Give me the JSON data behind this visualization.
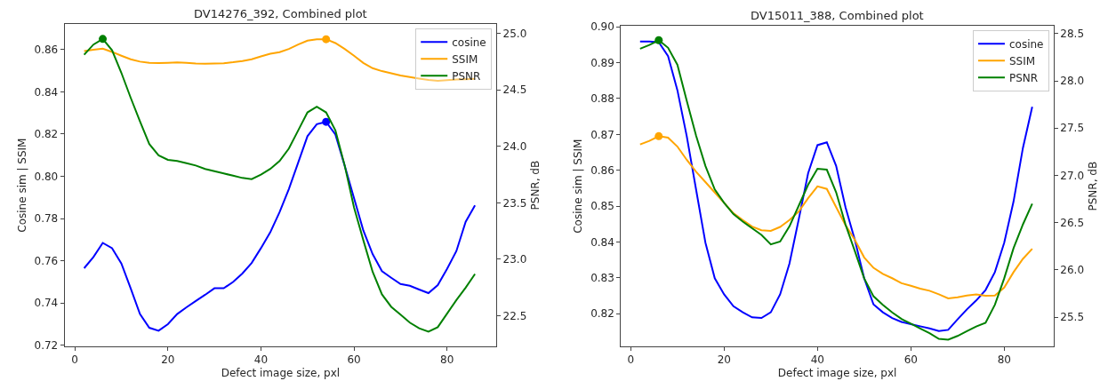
{
  "chart_data": [
    {
      "type": "line",
      "title": "DV14276_392, Combined plot",
      "xlabel": "Defect image size, pxl",
      "ylabel": "Cosine sim | SSIM",
      "y2label": "PSNR, dB",
      "legend": "top right",
      "grid": false,
      "x": [
        2,
        4,
        6,
        8,
        10,
        12,
        14,
        16,
        18,
        20,
        22,
        24,
        26,
        28,
        30,
        32,
        34,
        36,
        38,
        40,
        42,
        44,
        46,
        48,
        50,
        52,
        54,
        56,
        58,
        60,
        62,
        64,
        66,
        68,
        70,
        72,
        74,
        76,
        78,
        80,
        82,
        84,
        86
      ],
      "xlim": [
        -2.2,
        90.6
      ],
      "xticks": [
        0,
        20,
        40,
        60,
        80
      ],
      "ylim": [
        0.7195,
        0.872
      ],
      "yticks": [
        {
          "value": 0.72,
          "label": "0.72"
        },
        {
          "value": 0.74,
          "label": "0.74"
        },
        {
          "value": 0.76,
          "label": "0.76"
        },
        {
          "value": 0.78,
          "label": "0.78"
        },
        {
          "value": 0.8,
          "label": "0.80"
        },
        {
          "value": 0.82,
          "label": "0.82"
        },
        {
          "value": 0.84,
          "label": "0.84"
        },
        {
          "value": 0.86,
          "label": "0.86"
        }
      ],
      "y2lim": [
        22.23,
        25.08
      ],
      "y2ticks": [
        22.5,
        {
          "value": 23,
          "label": "23.0"
        },
        23.5,
        {
          "value": 24,
          "label": "24.0"
        },
        24.5,
        {
          "value": 25,
          "label": "25.0"
        }
      ],
      "series": [
        {
          "name": "cosine",
          "color": "#0000ff",
          "values": [
            0.7565,
            0.7618,
            0.7685,
            0.766,
            0.7587,
            0.747,
            0.7348,
            0.7283,
            0.7269,
            0.73,
            0.7348,
            0.738,
            0.741,
            0.7439,
            0.747,
            0.747,
            0.75,
            0.754,
            0.759,
            0.766,
            0.7735,
            0.783,
            0.794,
            0.8065,
            0.819,
            0.8247,
            0.8258,
            0.8198,
            0.805,
            0.7897,
            0.7744,
            0.7632,
            0.7551,
            0.752,
            0.749,
            0.7482,
            0.7464,
            0.7447,
            0.7485,
            0.7562,
            0.7646,
            0.7785,
            0.7862
          ]
        },
        {
          "name": "SSIM",
          "color": "#ffa500",
          "values": [
            0.8593,
            0.8599,
            0.8604,
            0.8589,
            0.8571,
            0.8554,
            0.8543,
            0.8537,
            0.8536,
            0.8537,
            0.8539,
            0.8537,
            0.8534,
            0.8533,
            0.8534,
            0.8535,
            0.854,
            0.8546,
            0.8554,
            0.8568,
            0.858,
            0.8588,
            0.8603,
            0.8624,
            0.8642,
            0.8649,
            0.8649,
            0.8631,
            0.8603,
            0.8571,
            0.8537,
            0.8512,
            0.8498,
            0.8488,
            0.8477,
            0.847,
            0.8463,
            0.8456,
            0.8452,
            0.8455,
            0.8458,
            0.846,
            0.8462
          ]
        },
        {
          "name": "PSNR",
          "color": "#008000",
          "axis": "y2",
          "values": [
            24.81,
            24.9,
            24.95,
            24.85,
            24.65,
            24.43,
            24.22,
            24.02,
            23.92,
            23.88,
            23.87,
            23.85,
            23.83,
            23.8,
            23.78,
            23.76,
            23.74,
            23.72,
            23.71,
            23.75,
            23.8,
            23.87,
            23.98,
            24.14,
            24.3,
            24.35,
            24.3,
            24.14,
            23.83,
            23.46,
            23.17,
            22.89,
            22.69,
            22.58,
            22.51,
            22.44,
            22.39,
            22.36,
            22.4,
            22.52,
            22.64,
            22.75,
            22.87
          ]
        },
        {
          "type": "scatter",
          "color": "#008000",
          "axis": "y2",
          "values": [
            null,
            null,
            24.95,
            null,
            null,
            null,
            null,
            null,
            null,
            null,
            null,
            null,
            null,
            null,
            null,
            null,
            null,
            null,
            null,
            null,
            null,
            null,
            null,
            null,
            null,
            null,
            null,
            null,
            null,
            null,
            null,
            null,
            null,
            null,
            null,
            null,
            null,
            null,
            null,
            null,
            null,
            null,
            null
          ]
        },
        {
          "type": "scatter",
          "color": "#ffa500",
          "values": [
            null,
            null,
            null,
            null,
            null,
            null,
            null,
            null,
            null,
            null,
            null,
            null,
            null,
            null,
            null,
            null,
            null,
            null,
            null,
            null,
            null,
            null,
            null,
            null,
            null,
            null,
            0.8649,
            null,
            null,
            null,
            null,
            null,
            null,
            null,
            null,
            null,
            null,
            null,
            null,
            null,
            null,
            null,
            null
          ]
        },
        {
          "type": "scatter",
          "color": "#0000ff",
          "values": [
            null,
            null,
            null,
            null,
            null,
            null,
            null,
            null,
            null,
            null,
            null,
            null,
            null,
            null,
            null,
            null,
            null,
            null,
            null,
            null,
            null,
            null,
            null,
            null,
            null,
            null,
            0.8258,
            null,
            null,
            null,
            null,
            null,
            null,
            null,
            null,
            null,
            null,
            null,
            null,
            null,
            null,
            null,
            null
          ]
        }
      ]
    },
    {
      "type": "line",
      "title": "DV15011_388, Combined plot",
      "xlabel": "Defect image size, pxl",
      "ylabel": "Cosine sim | SSIM",
      "y2label": "PSNR, dB",
      "legend": "top right",
      "grid": false,
      "x": [
        2,
        4,
        6,
        8,
        10,
        12,
        14,
        16,
        18,
        20,
        22,
        24,
        26,
        28,
        30,
        32,
        34,
        36,
        38,
        40,
        42,
        44,
        46,
        48,
        50,
        52,
        54,
        56,
        58,
        60,
        62,
        64,
        66,
        68,
        70,
        72,
        74,
        76,
        78,
        80,
        82,
        84,
        86
      ],
      "xlim": [
        -2.1,
        90.6
      ],
      "xticks": [
        0,
        20,
        40,
        60,
        80
      ],
      "ylim": [
        0.8109,
        0.9002
      ],
      "yticks": [
        {
          "value": 0.82,
          "label": "0.82"
        },
        {
          "value": 0.83,
          "label": "0.83"
        },
        {
          "value": 0.84,
          "label": "0.84"
        },
        {
          "value": 0.85,
          "label": "0.85"
        },
        {
          "value": 0.86,
          "label": "0.86"
        },
        {
          "value": 0.87,
          "label": "0.87"
        },
        {
          "value": 0.88,
          "label": "0.88"
        },
        {
          "value": 0.89,
          "label": "0.89"
        },
        {
          "value": 0.9,
          "label": "0.90"
        }
      ],
      "y2lim": [
        25.19,
        28.58
      ],
      "y2ticks": [
        25.5,
        {
          "value": 26,
          "label": "26.0"
        },
        26.5,
        {
          "value": 27,
          "label": "27.0"
        },
        27.5,
        {
          "value": 28,
          "label": "28.0"
        },
        28.5
      ],
      "series": [
        {
          "name": "cosine",
          "color": "#0000ff",
          "values": [
            0.8959,
            0.8959,
            0.8957,
            0.8918,
            0.8823,
            0.8695,
            0.8546,
            0.8398,
            0.8299,
            0.8254,
            0.8221,
            0.8204,
            0.819,
            0.8188,
            0.8204,
            0.8254,
            0.834,
            0.8464,
            0.8592,
            0.867,
            0.8678,
            0.8612,
            0.8497,
            0.8406,
            0.8299,
            0.8226,
            0.8204,
            0.8188,
            0.8177,
            0.8171,
            0.8165,
            0.8159,
            0.8152,
            0.8155,
            0.8184,
            0.8212,
            0.8237,
            0.8266,
            0.8316,
            0.8398,
            0.8513,
            0.8662,
            0.8777
          ]
        },
        {
          "name": "SSIM",
          "color": "#ffa500",
          "values": [
            0.8672,
            0.8682,
            0.8695,
            0.8691,
            0.8666,
            0.8629,
            0.8596,
            0.8567,
            0.8538,
            0.8509,
            0.848,
            0.8461,
            0.8443,
            0.8433,
            0.8431,
            0.8442,
            0.8461,
            0.8485,
            0.8522,
            0.8555,
            0.8548,
            0.8497,
            0.8447,
            0.8406,
            0.8357,
            0.8328,
            0.8311,
            0.8299,
            0.8285,
            0.8278,
            0.827,
            0.8264,
            0.8254,
            0.8243,
            0.8246,
            0.8251,
            0.8254,
            0.825,
            0.8251,
            0.8273,
            0.8316,
            0.8353,
            0.8381
          ]
        },
        {
          "name": "PSNR",
          "color": "#008000",
          "axis": "y2",
          "values": [
            28.34,
            28.38,
            28.43,
            28.35,
            28.17,
            27.79,
            27.42,
            27.1,
            26.85,
            26.71,
            26.59,
            26.51,
            26.44,
            26.37,
            26.27,
            26.3,
            26.46,
            26.68,
            26.9,
            27.07,
            27.06,
            26.82,
            26.48,
            26.2,
            25.91,
            25.72,
            25.63,
            25.55,
            25.48,
            25.43,
            25.38,
            25.33,
            25.27,
            25.26,
            25.3,
            25.35,
            25.4,
            25.44,
            25.63,
            25.91,
            26.23,
            26.48,
            26.7
          ]
        },
        {
          "type": "scatter",
          "color": "#ffa500",
          "values": [
            null,
            null,
            0.8695,
            null,
            null,
            null,
            null,
            null,
            null,
            null,
            null,
            null,
            null,
            null,
            null,
            null,
            null,
            null,
            null,
            null,
            null,
            null,
            null,
            null,
            null,
            null,
            null,
            null,
            null,
            null,
            null,
            null,
            null,
            null,
            null,
            null,
            null,
            null,
            null,
            null,
            null,
            null,
            null
          ]
        },
        {
          "type": "scatter",
          "color": "#008000",
          "axis": "y2",
          "values": [
            null,
            null,
            28.43,
            null,
            null,
            null,
            null,
            null,
            null,
            null,
            null,
            null,
            null,
            null,
            null,
            null,
            null,
            null,
            null,
            null,
            null,
            null,
            null,
            null,
            null,
            null,
            null,
            null,
            null,
            null,
            null,
            null,
            null,
            null,
            null,
            null,
            null,
            null,
            null,
            null,
            null,
            null,
            null
          ]
        }
      ]
    }
  ]
}
